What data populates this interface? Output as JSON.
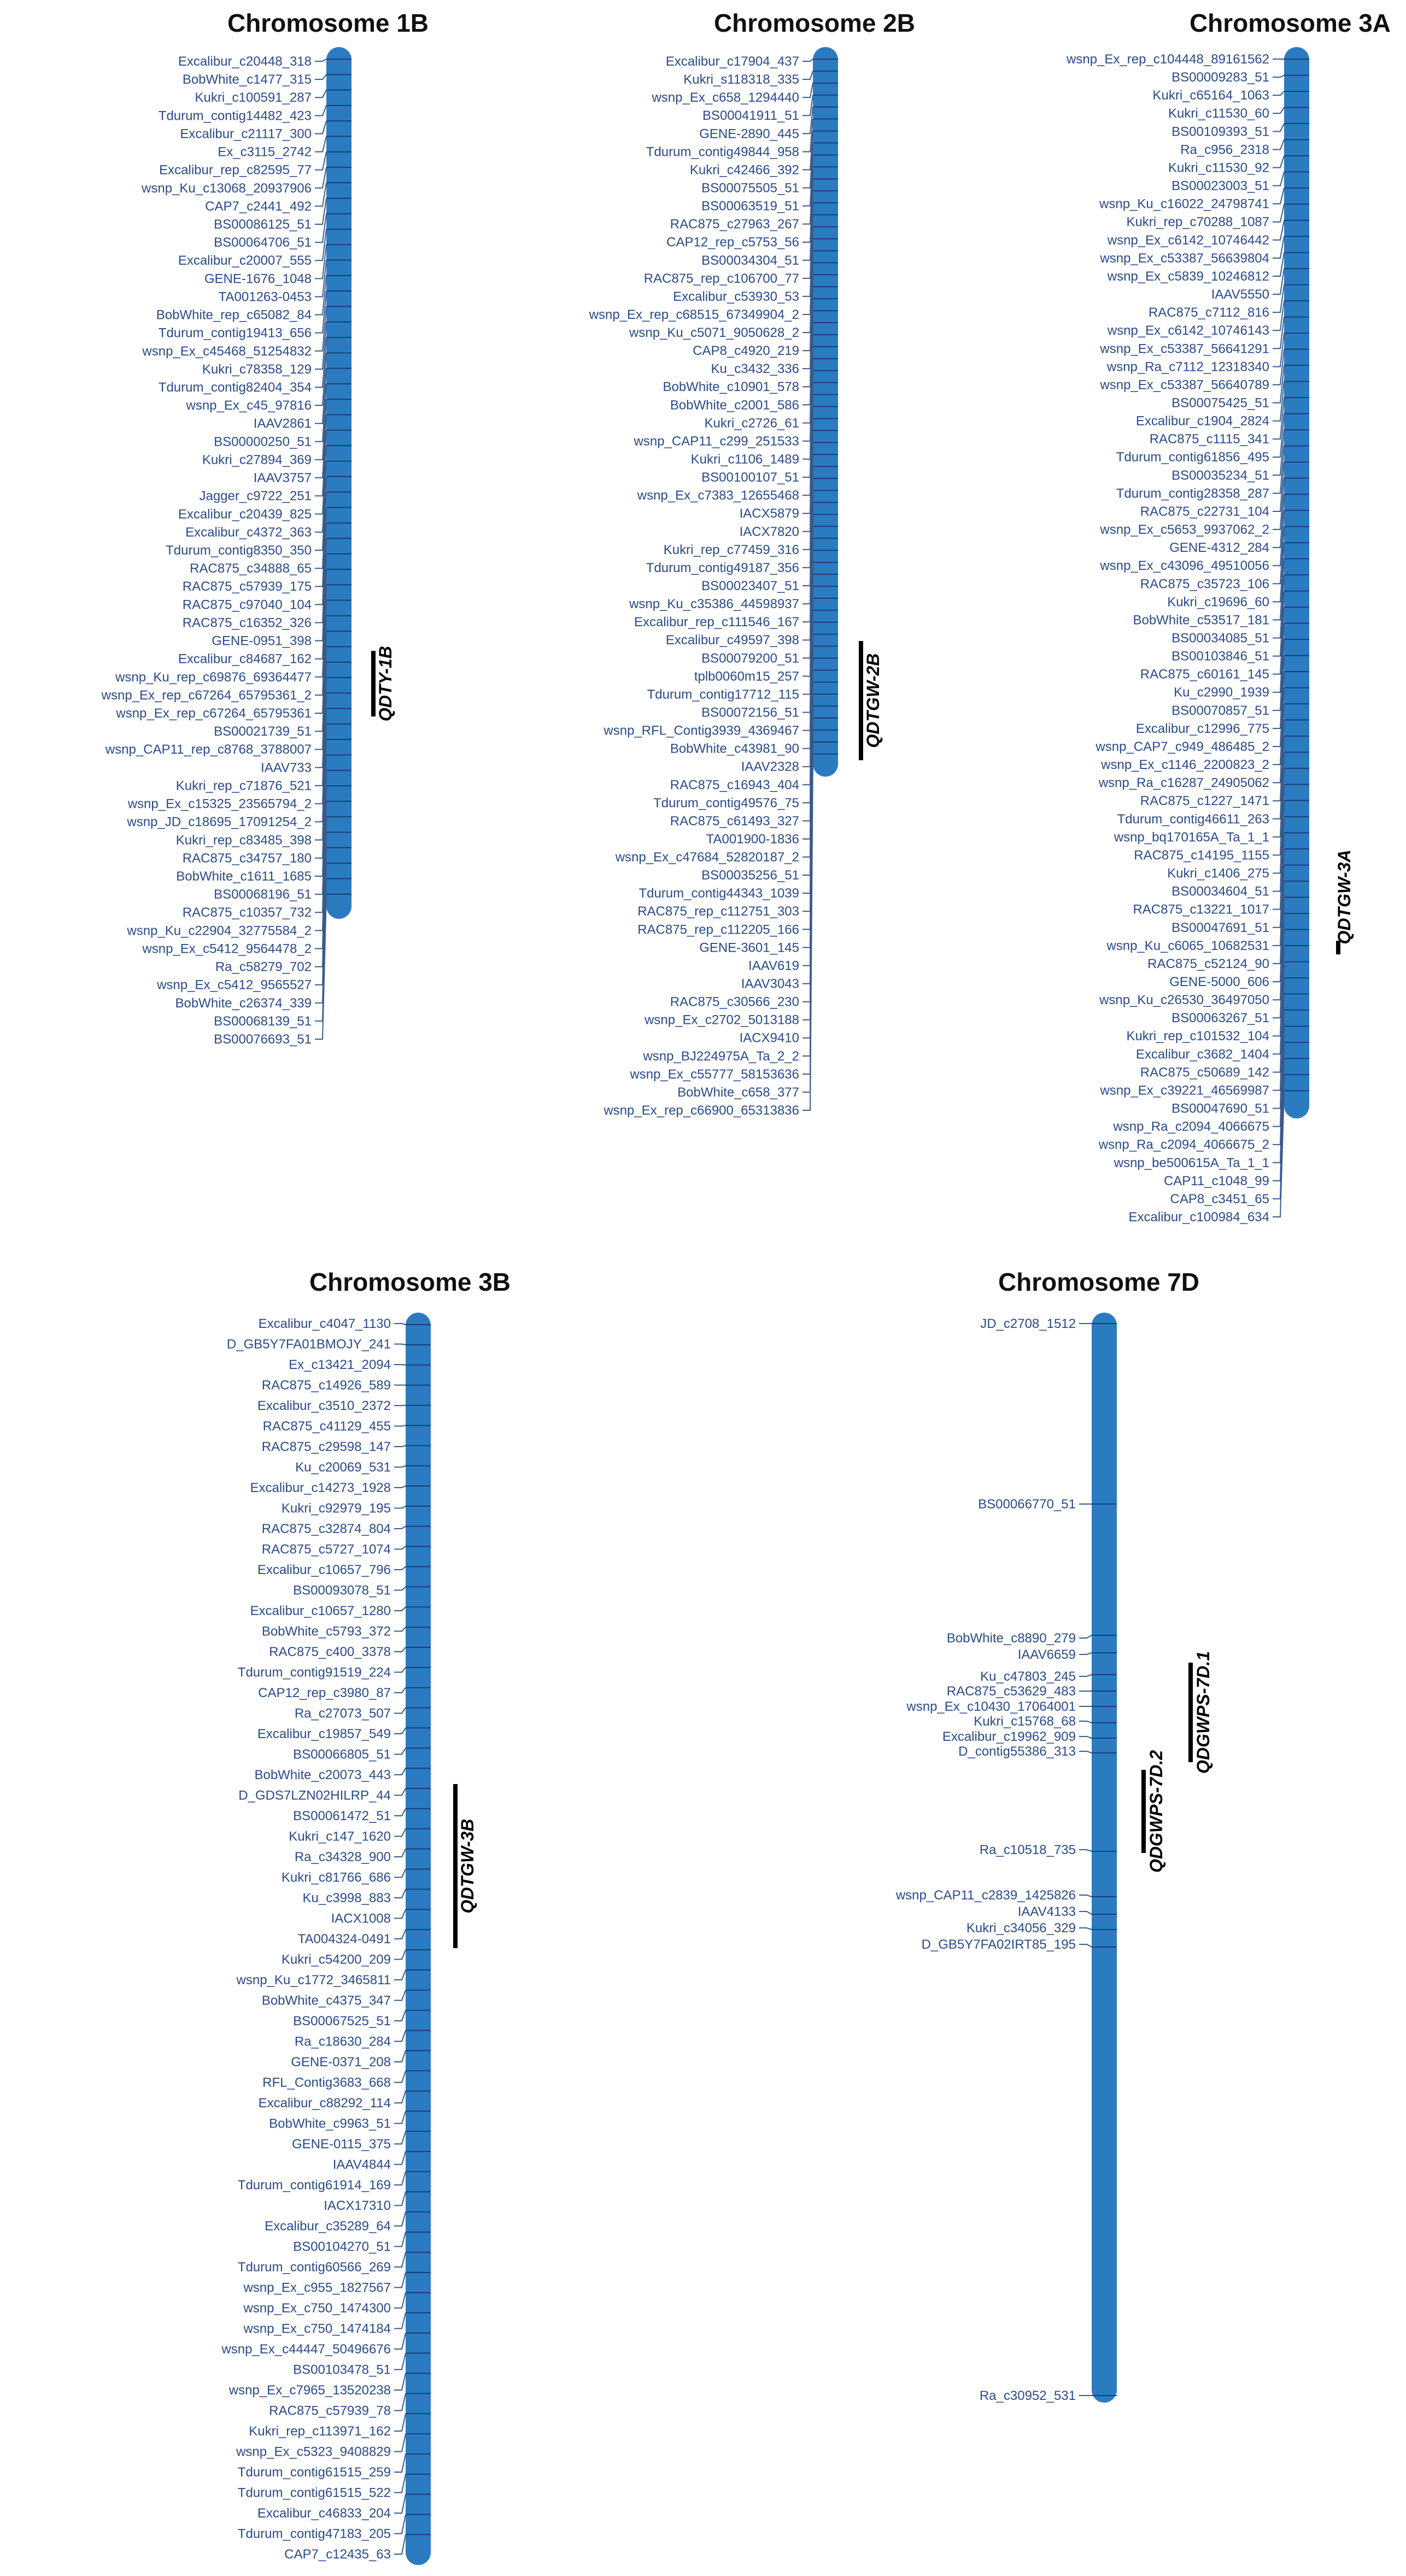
{
  "colors": {
    "chromosome": "#2b7bc0",
    "label": "#2a4a8a",
    "leader": "#3a5a8c",
    "qtl": "#000000"
  },
  "chromosomes": [
    {
      "title": "Chromosome 1B",
      "markers": [
        "Excalibur_c20448_318",
        "BobWhite_c1477_315",
        "Kukri_c100591_287",
        "Tdurum_contig14482_423",
        "Excalibur_c21117_300",
        "Ex_c3115_2742",
        "Excalibur_rep_c82595_77",
        "wsnp_Ku_c13068_20937906",
        "CAP7_c2441_492",
        "BS00086125_51",
        "BS00064706_51",
        "Excalibur_c20007_555",
        "GENE-1676_1048",
        "TA001263-0453",
        "BobWhite_rep_c65082_84",
        "Tdurum_contig19413_656",
        "wsnp_Ex_c45468_51254832",
        "Kukri_c78358_129",
        "Tdurum_contig82404_354",
        "wsnp_Ex_c45_97816",
        "IAAV2861",
        "BS00000250_51",
        "Kukri_c27894_369",
        "IAAV3757",
        "Jagger_c9722_251",
        "Excalibur_c20439_825",
        "Excalibur_c4372_363",
        "Tdurum_contig8350_350",
        "RAC875_c34888_65",
        "RAC875_c57939_175",
        "RAC875_c97040_104",
        "RAC875_c16352_326",
        "GENE-0951_398",
        "Excalibur_c84687_162",
        "wsnp_Ku_rep_c69876_69364477",
        "wsnp_Ex_rep_c67264_65795361_2",
        "wsnp_Ex_rep_c67264_65795361",
        "BS00021739_51",
        "wsnp_CAP11_rep_c8768_3788007",
        "IAAV733",
        "Kukri_rep_c71876_521",
        "wsnp_Ex_c15325_23565794_2",
        "wsnp_JD_c18695_17091254_2",
        "Kukri_rep_c83485_398",
        "RAC875_c34757_180",
        "BobWhite_c1611_1685",
        "BS00068196_51",
        "RAC875_c10357_732",
        "wsnp_Ku_c22904_32775584_2",
        "wsnp_Ex_c5412_9564478_2",
        "Ra_c58279_702",
        "wsnp_Ex_c5412_9565527",
        "BobWhite_c26374_339",
        "BS00068139_51",
        "BS00076693_51"
      ],
      "qtl": [
        {
          "label": "QDTY-1B"
        }
      ]
    },
    {
      "title": "Chromosome 2B",
      "markers": [
        "Excalibur_c17904_437",
        "Kukri_s118318_335",
        "wsnp_Ex_c658_1294440",
        "BS00041911_51",
        "GENE-2890_445",
        "Tdurum_contig49844_958",
        "Kukri_c42466_392",
        "BS00075505_51",
        "BS00063519_51",
        "RAC875_c27963_267",
        "CAP12_rep_c5753_56",
        "BS00034304_51",
        "RAC875_rep_c106700_77",
        "Excalibur_c53930_53",
        "wsnp_Ex_rep_c68515_67349904_2",
        "wsnp_Ku_c5071_9050628_2",
        "CAP8_c4920_219",
        "Ku_c3432_336",
        "BobWhite_c10901_578",
        "BobWhite_c2001_586",
        "Kukri_c2726_61",
        "wsnp_CAP11_c299_251533",
        "Kukri_c1106_1489",
        "BS00100107_51",
        "wsnp_Ex_c7383_12655468",
        "IACX5879",
        "IACX7820",
        "Kukri_rep_c77459_316",
        "Tdurum_contig49187_356",
        "BS00023407_51",
        "wsnp_Ku_c35386_44598937",
        "Excalibur_rep_c111546_167",
        "Excalibur_c49597_398",
        "BS00079200_51",
        "tplb0060m15_257",
        "Tdurum_contig17712_115",
        "BS00072156_51",
        "wsnp_RFL_Contig3939_4369467",
        "BobWhite_c43981_90",
        "IAAV2328",
        "RAC875_c16943_404",
        "Tdurum_contig49576_75",
        "RAC875_c61493_327",
        "TA001900-1836",
        "wsnp_Ex_c47684_52820187_2",
        "BS00035256_51",
        "Tdurum_contig44343_1039",
        "RAC875_rep_c112751_303",
        "RAC875_rep_c112205_166",
        "GENE-3601_145",
        "IAAV619",
        "IAAV3043",
        "RAC875_c30566_230",
        "wsnp_Ex_c2702_5013188",
        "IACX9410",
        "wsnp_BJ224975A_Ta_2_2",
        "wsnp_Ex_c55777_58153636",
        "BobWhite_c658_377",
        "wsnp_Ex_rep_c66900_65313836"
      ],
      "qtl": [
        {
          "label": "QDTGW-2B"
        }
      ]
    },
    {
      "title": "Chromosome 3A",
      "markers": [
        "wsnp_Ex_rep_c104448_89161562",
        "BS00009283_51",
        "Kukri_c65164_1063",
        "Kukri_c11530_60",
        "BS00109393_51",
        "Ra_c956_2318",
        "Kukri_c11530_92",
        "BS00023003_51",
        "wsnp_Ku_c16022_24798741",
        "Kukri_rep_c70288_1087",
        "wsnp_Ex_c6142_10746442",
        "wsnp_Ex_c53387_56639804",
        "wsnp_Ex_c5839_10246812",
        "IAAV5550",
        "RAC875_c7112_816",
        "wsnp_Ex_c6142_10746143",
        "wsnp_Ex_c53387_56641291",
        "wsnp_Ra_c7112_12318340",
        "wsnp_Ex_c53387_56640789",
        "BS00075425_51",
        "Excalibur_c1904_2824",
        "RAC875_c1115_341",
        "Tdurum_contig61856_495",
        "BS00035234_51",
        "Tdurum_contig28358_287",
        "RAC875_c22731_104",
        "wsnp_Ex_c5653_9937062_2",
        "GENE-4312_284",
        "wsnp_Ex_c43096_49510056",
        "RAC875_c35723_106",
        "Kukri_c19696_60",
        "BobWhite_c53517_181",
        "BS00034085_51",
        "BS00103846_51",
        "RAC875_c60161_145",
        "Ku_c2990_1939",
        "BS00070857_51",
        "Excalibur_c12996_775",
        "wsnp_CAP7_c949_486485_2",
        "wsnp_Ex_c1146_2200823_2",
        "wsnp_Ra_c16287_24905062",
        "RAC875_c1227_1471",
        "Tdurum_contig46611_263",
        "wsnp_bq170165A_Ta_1_1",
        "RAC875_c14195_1155",
        "Kukri_c1406_275",
        "BS00034604_51",
        "RAC875_c13221_1017",
        "BS00047691_51",
        "wsnp_Ku_c6065_10682531",
        "RAC875_c52124_90",
        "GENE-5000_606",
        "wsnp_Ku_c26530_36497050",
        "BS00063267_51",
        "Kukri_rep_c101532_104",
        "Excalibur_c3682_1404",
        "RAC875_c50689_142",
        "wsnp_Ex_c39221_46569987",
        "BS00047690_51",
        "wsnp_Ra_c2094_4066675",
        "wsnp_Ra_c2094_4066675_2",
        "wsnp_be500615A_Ta_1_1",
        "CAP11_c1048_99",
        "CAP8_c3451_65",
        "Excalibur_c100984_634"
      ],
      "qtl": [
        {
          "label": "QDTGW-3A"
        }
      ]
    },
    {
      "title": "Chromosome 3B",
      "markers": [
        "Excalibur_c4047_1130",
        "D_GB5Y7FA01BMOJY_241",
        "Ex_c13421_2094",
        "RAC875_c14926_589",
        "Excalibur_c3510_2372",
        "RAC875_c41129_455",
        "RAC875_c29598_147",
        "Ku_c20069_531",
        "Excalibur_c14273_1928",
        "Kukri_c92979_195",
        "RAC875_c32874_804",
        "RAC875_c5727_1074",
        "Excalibur_c10657_796",
        "BS00093078_51",
        "Excalibur_c10657_1280",
        "BobWhite_c5793_372",
        "RAC875_c400_3378",
        "Tdurum_contig91519_224",
        "CAP12_rep_c3980_87",
        "Ra_c27073_507",
        "Excalibur_c19857_549",
        "BS00066805_51",
        "BobWhite_c20073_443",
        "D_GDS7LZN02HILRP_44",
        "BS00061472_51",
        "Kukri_c147_1620",
        "Ra_c34328_900",
        "Kukri_c81766_686",
        "Ku_c3998_883",
        "IACX1008",
        "TA004324-0491",
        "Kukri_c54200_209",
        "wsnp_Ku_c1772_3465811",
        "BobWhite_c4375_347",
        "BS00067525_51",
        "Ra_c18630_284",
        "GENE-0371_208",
        "RFL_Contig3683_668",
        "Excalibur_c88292_114",
        "BobWhite_c9963_51",
        "GENE-0115_375",
        "IAAV4844",
        "Tdurum_contig61914_169",
        "IACX17310",
        "Excalibur_c35289_64",
        "BS00104270_51",
        "Tdurum_contig60566_269",
        "wsnp_Ex_c955_1827567",
        "wsnp_Ex_c750_1474300",
        "wsnp_Ex_c750_1474184",
        "wsnp_Ex_c44447_50496676",
        "BS00103478_51",
        "wsnp_Ex_c7965_13520238",
        "RAC875_c57939_78",
        "Kukri_rep_c113971_162",
        "wsnp_Ex_c5323_9408829",
        "Tdurum_contig61515_259",
        "Tdurum_contig61515_522",
        "Excalibur_c46833_204",
        "Tdurum_contig47183_205",
        "CAP7_c12435_63"
      ],
      "qtl": [
        {
          "label": "QDTGW-3B"
        }
      ]
    },
    {
      "title": "Chromosome 7D",
      "markers": [
        "JD_c2708_1512",
        "BS00066770_51",
        "BobWhite_c8890_279",
        "IAAV6659",
        "Ku_c47803_245",
        "RAC875_c53629_483",
        "wsnp_Ex_c10430_17064001",
        "Kukri_c15768_68",
        "Excalibur_c19962_909",
        "D_contig55386_313",
        "Ra_c10518_735",
        "wsnp_CAP11_c2839_1425826",
        "IAAV4133",
        "Kukri_c34056_329",
        "D_GB5Y7FA02IRT85_195",
        "Ra_c30952_531"
      ],
      "qtl": [
        {
          "label": "QDGWPS-7D.1"
        },
        {
          "label": "QDGWPS-7D.2"
        }
      ]
    }
  ]
}
